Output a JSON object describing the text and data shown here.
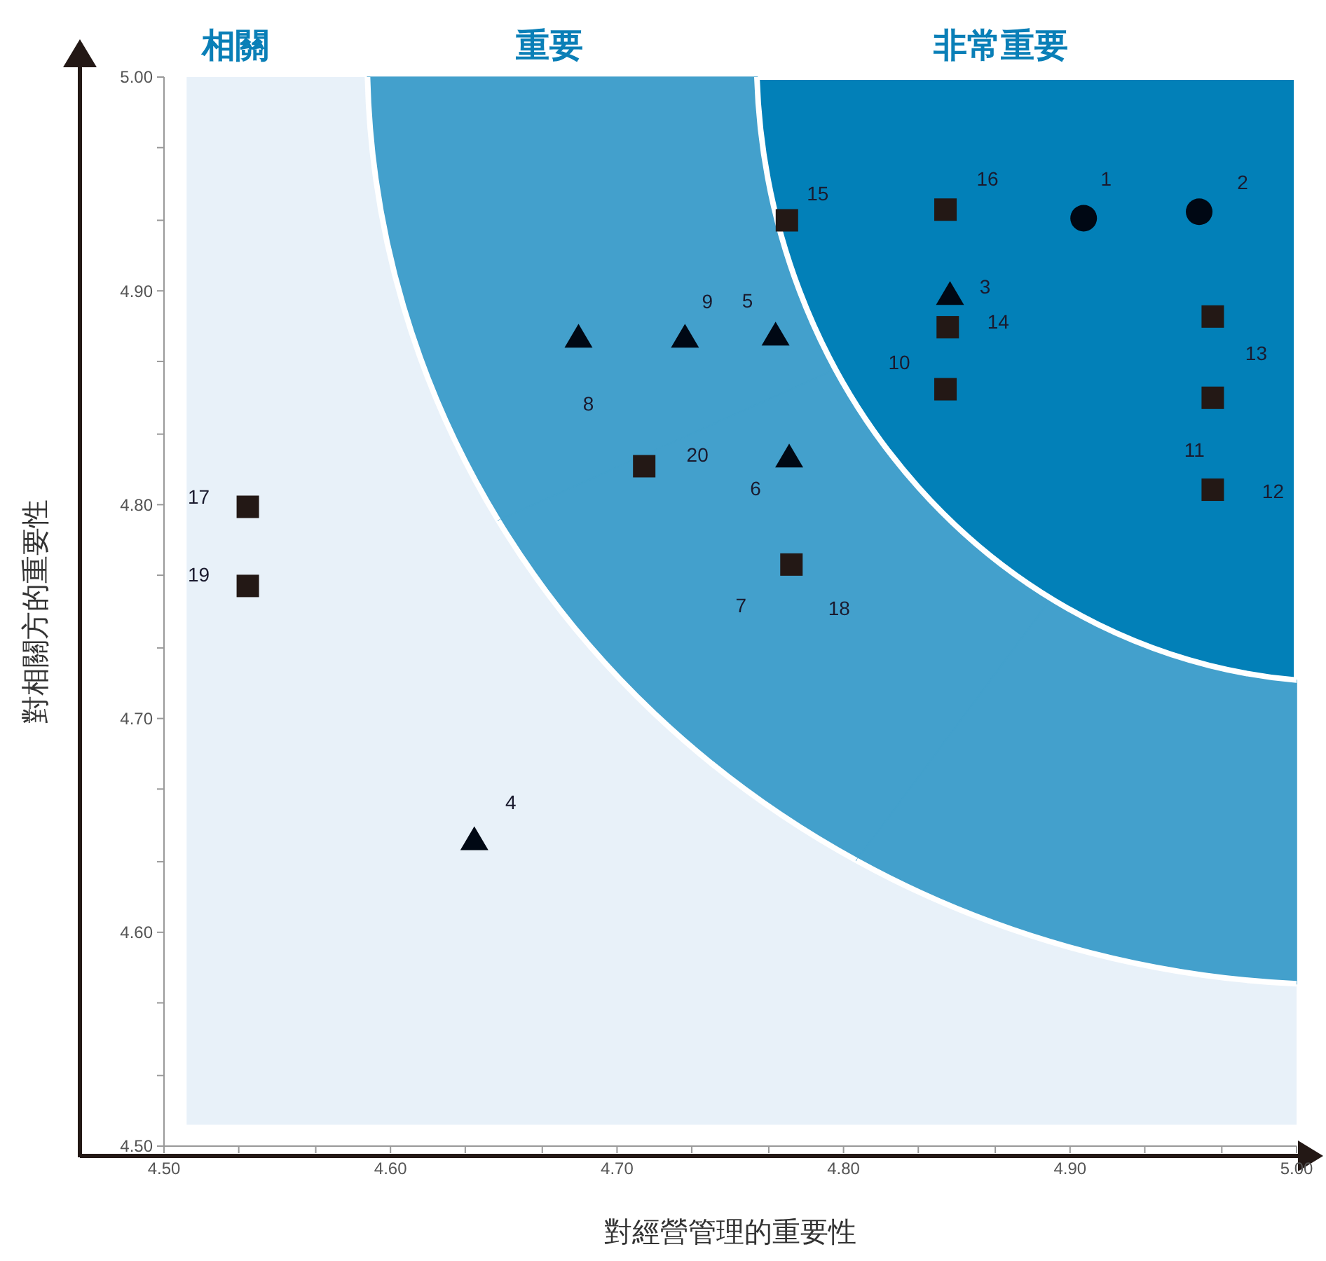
{
  "chart_data": {
    "type": "scatter",
    "xlabel": "對經營管理的重要性",
    "ylabel": "對相關方的重要性",
    "xlim": [
      4.5,
      5.0
    ],
    "ylim": [
      4.5,
      5.0
    ],
    "xticks": [
      {
        "value": 4.5,
        "label": "4.50"
      },
      {
        "value": 4.533,
        "label": null
      },
      {
        "value": 4.567,
        "label": null
      },
      {
        "value": 4.6,
        "label": "4.60"
      },
      {
        "value": 4.633,
        "label": null
      },
      {
        "value": 4.667,
        "label": null
      },
      {
        "value": 4.7,
        "label": "4.70"
      },
      {
        "value": 4.733,
        "label": null
      },
      {
        "value": 4.767,
        "label": null
      },
      {
        "value": 4.8,
        "label": "4.80"
      },
      {
        "value": 4.833,
        "label": null
      },
      {
        "value": 4.867,
        "label": null
      },
      {
        "value": 4.9,
        "label": "4.90"
      },
      {
        "value": 4.933,
        "label": null
      },
      {
        "value": 4.967,
        "label": null
      },
      {
        "value": 5.0,
        "label": "5.00"
      }
    ],
    "yticks": [
      {
        "value": 4.5,
        "label": "4.50"
      },
      {
        "value": 4.533,
        "label": null
      },
      {
        "value": 4.567,
        "label": null
      },
      {
        "value": 4.6,
        "label": "4.60"
      },
      {
        "value": 4.633,
        "label": null
      },
      {
        "value": 4.667,
        "label": null
      },
      {
        "value": 4.7,
        "label": "4.70"
      },
      {
        "value": 4.733,
        "label": null
      },
      {
        "value": 4.767,
        "label": null
      },
      {
        "value": 4.8,
        "label": "4.80"
      },
      {
        "value": 4.833,
        "label": null
      },
      {
        "value": 4.867,
        "label": null
      },
      {
        "value": 4.9,
        "label": "4.90"
      },
      {
        "value": 4.933,
        "label": null
      },
      {
        "value": 4.967,
        "label": null
      },
      {
        "value": 5.0,
        "label": "5.00"
      }
    ],
    "grid": false,
    "series": [
      {
        "color": "#000814",
        "marker": "circle",
        "x": [
          4.906,
          4.957
        ],
        "values": [
          4.934,
          4.937
        ]
      },
      {
        "color": "#000814",
        "marker": "triangle",
        "x": [
          4.847,
          4.637,
          4.77,
          4.776,
          4.683,
          4.73
        ],
        "values": [
          4.898,
          4.643,
          4.879,
          4.822,
          4.878,
          4.878
        ]
      },
      {
        "color": "#231815",
        "marker": "square",
        "x": [
          4.777,
          4.845,
          4.963,
          4.963,
          4.963,
          4.846,
          4.775,
          4.845,
          4.537,
          4.537,
          4.712
        ],
        "values": [
          4.772,
          4.854,
          4.85,
          4.807,
          4.888,
          4.883,
          4.933,
          4.938,
          4.799,
          4.762,
          4.818
        ]
      }
    ],
    "annotations": [
      "相關",
      "重要",
      "非常重要",
      {
        "text": "1",
        "x": 4.906,
        "y": 4.934
      },
      {
        "text": "2",
        "x": 4.957,
        "y": 4.937
      },
      {
        "text": "3",
        "x": 4.847,
        "y": 4.898
      },
      {
        "text": "4",
        "x": 4.637,
        "y": 4.643
      },
      {
        "text": "5",
        "x": 4.77,
        "y": 4.879
      },
      {
        "text": "6",
        "x": 4.776,
        "y": 4.822
      },
      {
        "text": "7",
        "x": 4.777,
        "y": 4.772
      },
      {
        "text": "8",
        "x": 4.683,
        "y": 4.878
      },
      {
        "text": "9",
        "x": 4.73,
        "y": 4.878
      },
      {
        "text": "10",
        "x": 4.845,
        "y": 4.854
      },
      {
        "text": "11",
        "x": 4.963,
        "y": 4.85
      },
      {
        "text": "12",
        "x": 4.963,
        "y": 4.807
      },
      {
        "text": "13",
        "x": 4.963,
        "y": 4.888
      },
      {
        "text": "14",
        "x": 4.846,
        "y": 4.883
      },
      {
        "text": "15",
        "x": 4.775,
        "y": 4.933
      },
      {
        "text": "16",
        "x": 4.845,
        "y": 4.938
      },
      {
        "text": "17",
        "x": 4.537,
        "y": 4.799
      },
      {
        "text": "18",
        "x": 4.777,
        "y": 4.772
      },
      {
        "text": "19",
        "x": 4.537,
        "y": 4.762
      },
      {
        "text": "20",
        "x": 4.712,
        "y": 4.818
      }
    ]
  }
}
